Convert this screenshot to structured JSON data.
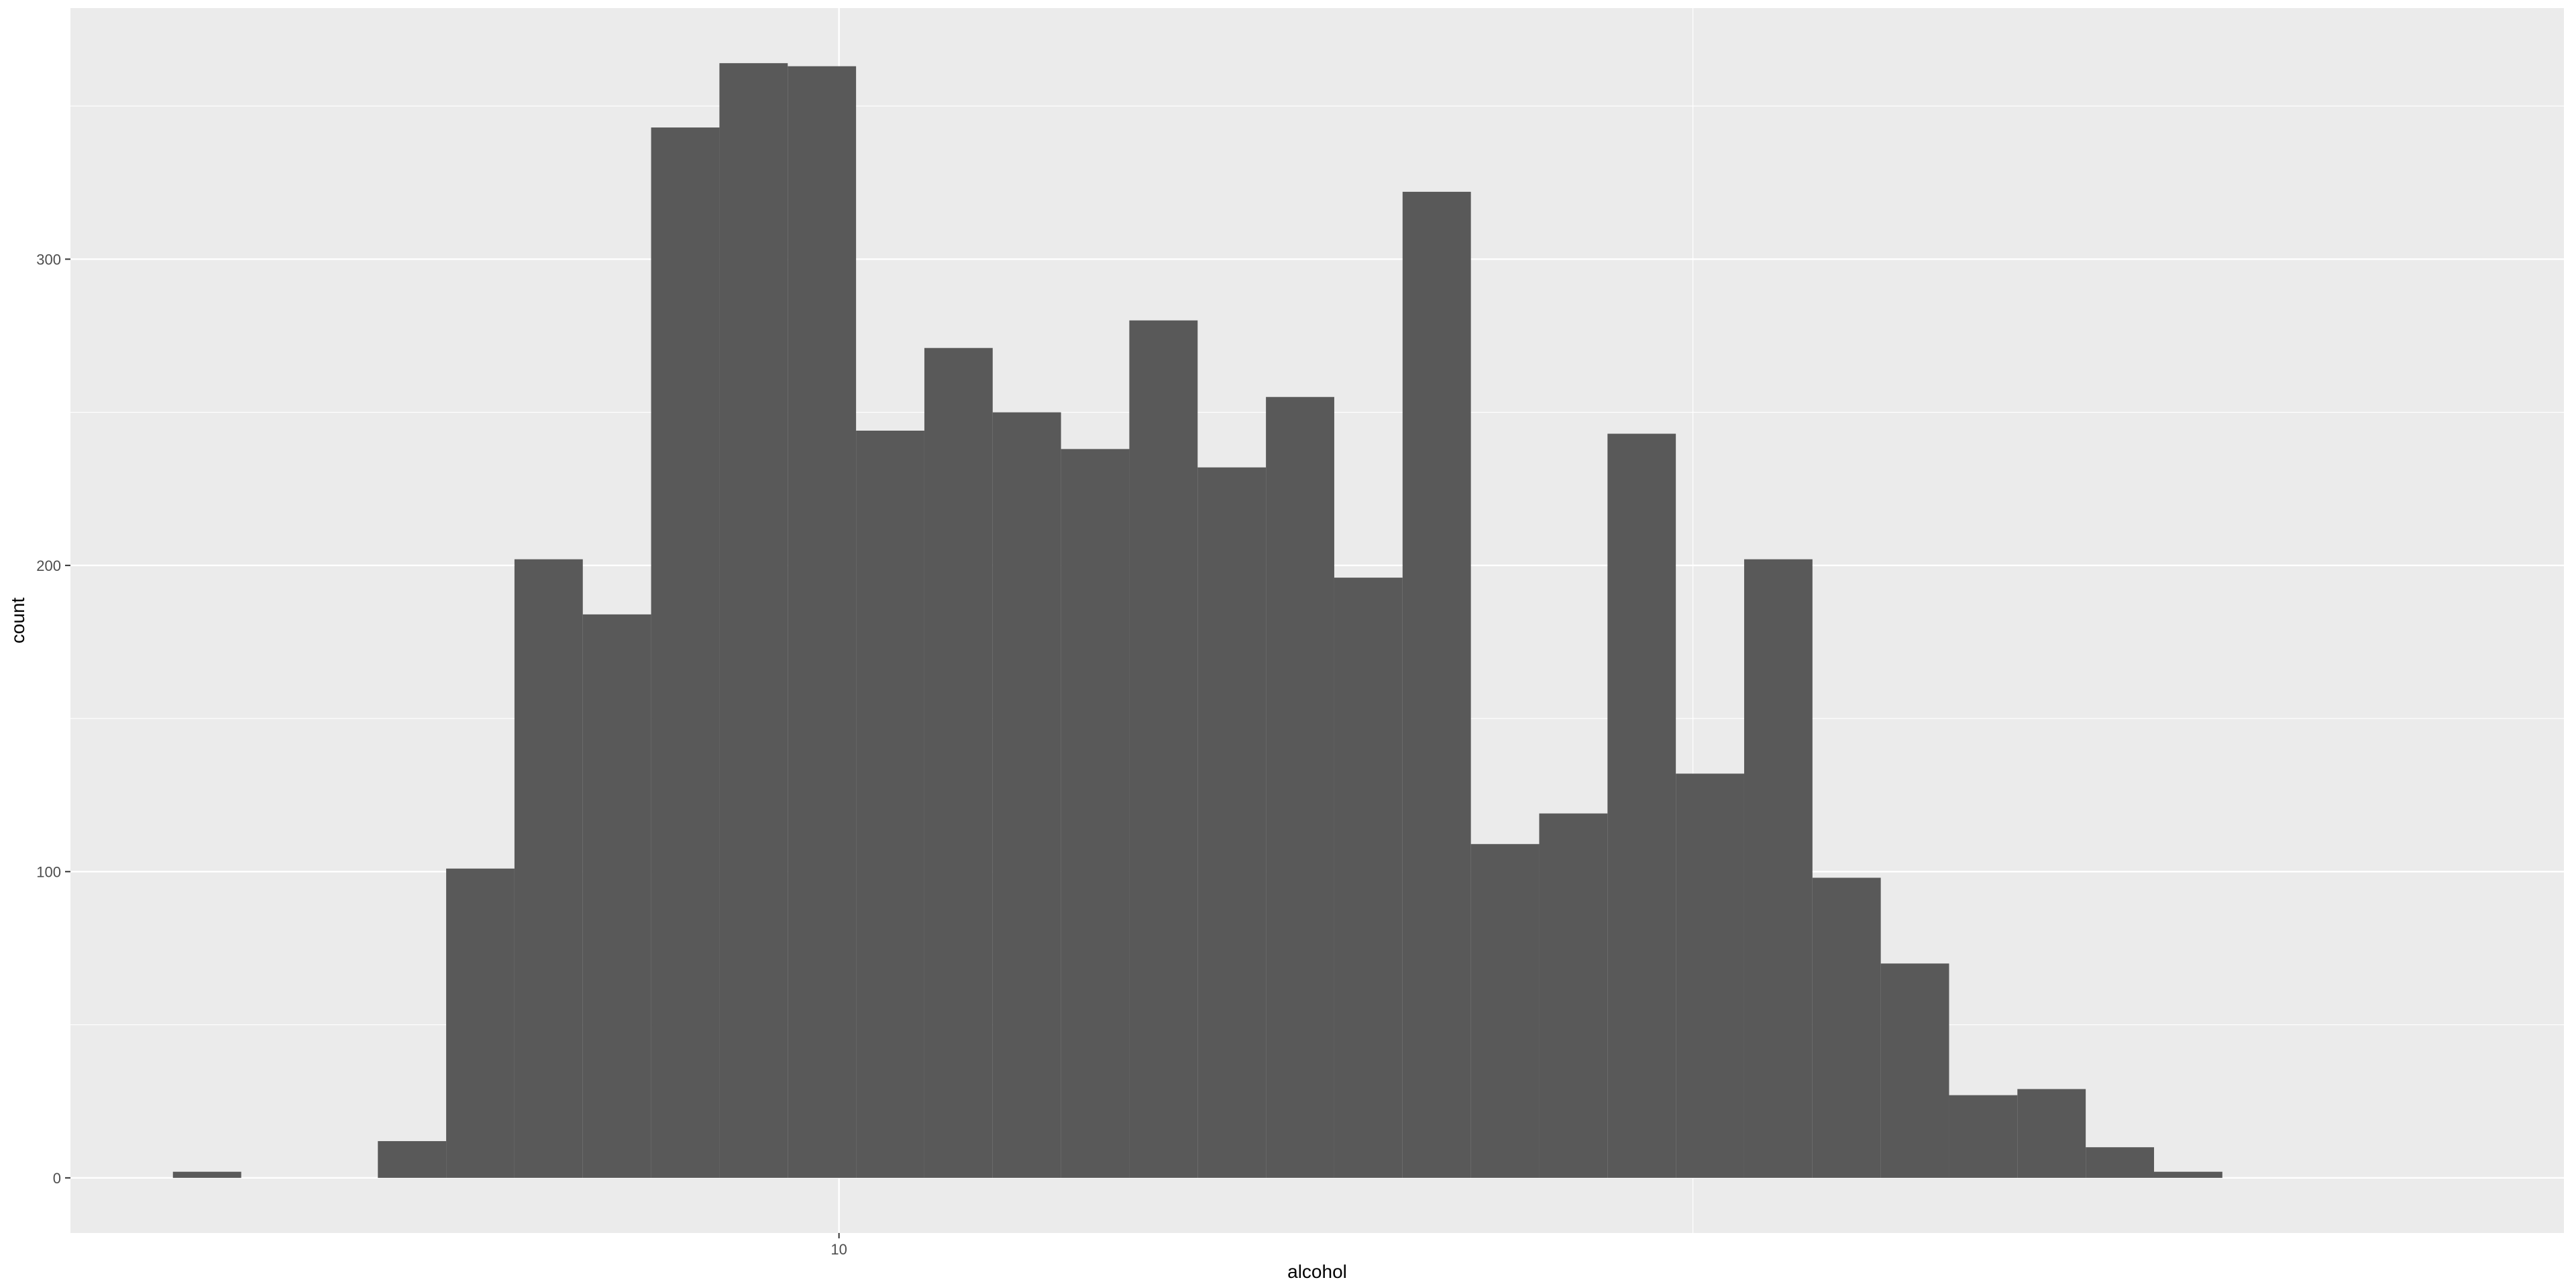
{
  "chart_data": {
    "type": "bar",
    "subtype": "histogram",
    "xlabel": "alcohol",
    "ylabel": "count",
    "x_ticks": [
      {
        "value": 10,
        "label": "10"
      }
    ],
    "y_ticks": [
      {
        "value": 0,
        "label": "0"
      },
      {
        "value": 100,
        "label": "100"
      },
      {
        "value": 200,
        "label": "200"
      },
      {
        "value": 300,
        "label": "300"
      }
    ],
    "xlim": [
      7.75,
      15.05
    ],
    "ylim": [
      -18,
      382
    ],
    "bin_width": 0.2,
    "bins": [
      {
        "x_start": 8.05,
        "count": 2
      },
      {
        "x_start": 8.25,
        "count": 0
      },
      {
        "x_start": 8.45,
        "count": 0
      },
      {
        "x_start": 8.65,
        "count": 12
      },
      {
        "x_start": 8.85,
        "count": 101
      },
      {
        "x_start": 9.05,
        "count": 202
      },
      {
        "x_start": 9.25,
        "count": 184
      },
      {
        "x_start": 9.45,
        "count": 343
      },
      {
        "x_start": 9.65,
        "count": 364
      },
      {
        "x_start": 9.85,
        "count": 363
      },
      {
        "x_start": 10.05,
        "count": 244
      },
      {
        "x_start": 10.25,
        "count": 271
      },
      {
        "x_start": 10.45,
        "count": 250
      },
      {
        "x_start": 10.65,
        "count": 238
      },
      {
        "x_start": 10.85,
        "count": 280
      },
      {
        "x_start": 11.05,
        "count": 232
      },
      {
        "x_start": 11.25,
        "count": 255
      },
      {
        "x_start": 11.45,
        "count": 196
      },
      {
        "x_start": 11.65,
        "count": 322
      },
      {
        "x_start": 11.85,
        "count": 109
      },
      {
        "x_start": 12.05,
        "count": 119
      },
      {
        "x_start": 12.25,
        "count": 243
      },
      {
        "x_start": 12.45,
        "count": 132
      },
      {
        "x_start": 12.65,
        "count": 202
      },
      {
        "x_start": 12.85,
        "count": 98
      },
      {
        "x_start": 13.05,
        "count": 70
      },
      {
        "x_start": 13.25,
        "count": 27
      },
      {
        "x_start": 13.45,
        "count": 29
      },
      {
        "x_start": 13.65,
        "count": 10
      },
      {
        "x_start": 13.85,
        "count": 2
      }
    ],
    "grid": true,
    "legend": "none",
    "colors": {
      "panel_background": "#EBEBEB",
      "grid_major": "#FFFFFF",
      "bar_fill": "#595959"
    }
  }
}
